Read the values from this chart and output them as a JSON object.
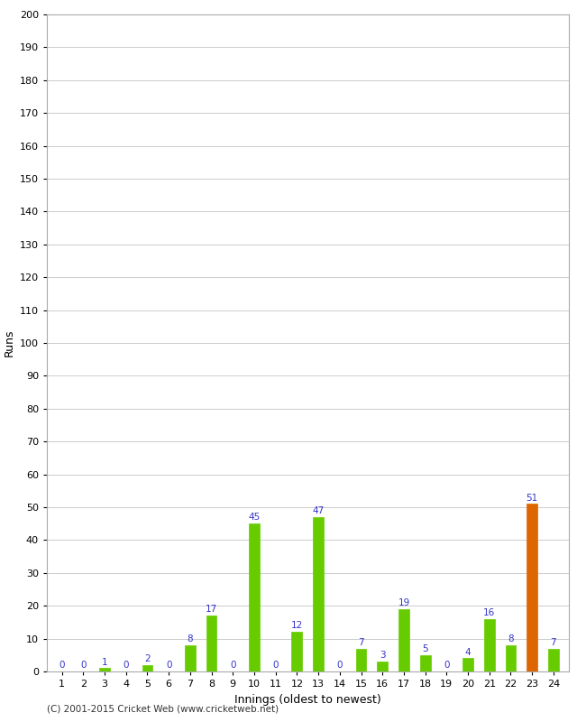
{
  "title": "",
  "xlabel": "Innings (oldest to newest)",
  "ylabel": "Runs",
  "categories": [
    1,
    2,
    3,
    4,
    5,
    6,
    7,
    8,
    9,
    10,
    11,
    12,
    13,
    14,
    15,
    16,
    17,
    18,
    19,
    20,
    21,
    22,
    23,
    24
  ],
  "values": [
    0,
    0,
    1,
    0,
    2,
    0,
    8,
    17,
    0,
    45,
    0,
    12,
    47,
    0,
    7,
    3,
    19,
    5,
    0,
    4,
    16,
    8,
    51,
    7
  ],
  "bar_colors": [
    "#66cc00",
    "#66cc00",
    "#66cc00",
    "#66cc00",
    "#66cc00",
    "#66cc00",
    "#66cc00",
    "#66cc00",
    "#66cc00",
    "#66cc00",
    "#66cc00",
    "#66cc00",
    "#66cc00",
    "#66cc00",
    "#66cc00",
    "#66cc00",
    "#66cc00",
    "#66cc00",
    "#66cc00",
    "#66cc00",
    "#66cc00",
    "#66cc00",
    "#dd6600",
    "#66cc00"
  ],
  "label_color": "#3333cc",
  "ylim": [
    0,
    200
  ],
  "yticks": [
    0,
    10,
    20,
    30,
    40,
    50,
    60,
    70,
    80,
    90,
    100,
    110,
    120,
    130,
    140,
    150,
    160,
    170,
    180,
    190,
    200
  ],
  "background_color": "#ffffff",
  "plot_bg_color": "#ffffff",
  "grid_color": "#cccccc",
  "footer": "(C) 2001-2015 Cricket Web (www.cricketweb.net)",
  "axis_label_fontsize": 9,
  "tick_fontsize": 8,
  "label_fontsize": 7.5
}
